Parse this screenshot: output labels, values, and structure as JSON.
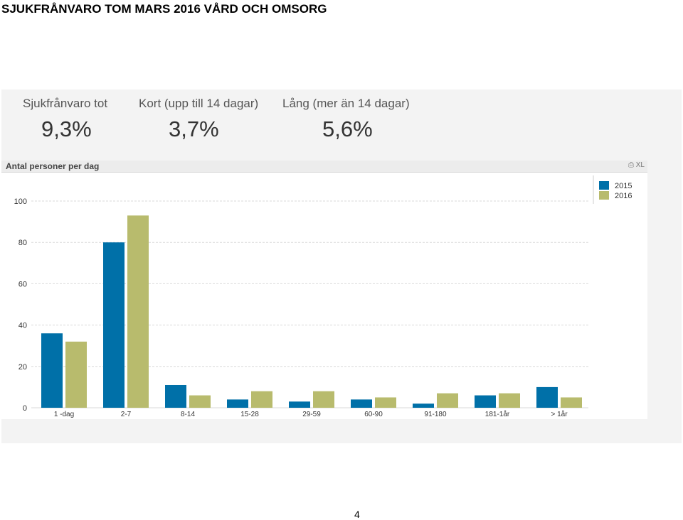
{
  "page": {
    "title": "SJUKFRÅNVARO TOM MARS 2016 VÅRD OCH OMSORG",
    "page_number": "4"
  },
  "kpis": [
    {
      "label": "Sjukfrånvaro tot",
      "value": "9,3%"
    },
    {
      "label": "Kort (upp till 14 dagar)",
      "value": "3,7%"
    },
    {
      "label": "Lång (mer än 14 dagar)",
      "value": "5,6%"
    }
  ],
  "chart_panel": {
    "caption": "Antal personer per dag",
    "print_icon": "printer-icon",
    "xl_label": "XL"
  },
  "colors": {
    "series_2015": "#0070a8",
    "series_2016": "#b8bb6d",
    "grid": "#d9d9d9"
  },
  "chart_data": {
    "type": "bar",
    "title": "Antal personer per dag",
    "xlabel": "",
    "ylabel": "",
    "ylim": [
      0,
      100
    ],
    "yticks": [
      0,
      20,
      40,
      60,
      80,
      100
    ],
    "grid": true,
    "legend_position": "top-right",
    "categories": [
      "1 -dag",
      "2-7",
      "8-14",
      "15-28",
      "29-59",
      "60-90",
      "91-180",
      "181-1år",
      "> 1år"
    ],
    "series": [
      {
        "name": "2015",
        "values": [
          36,
          80,
          11,
          4,
          3,
          4,
          2,
          6,
          10
        ]
      },
      {
        "name": "2016",
        "values": [
          32,
          93,
          6,
          8,
          8,
          5,
          7,
          7,
          5
        ]
      }
    ]
  }
}
